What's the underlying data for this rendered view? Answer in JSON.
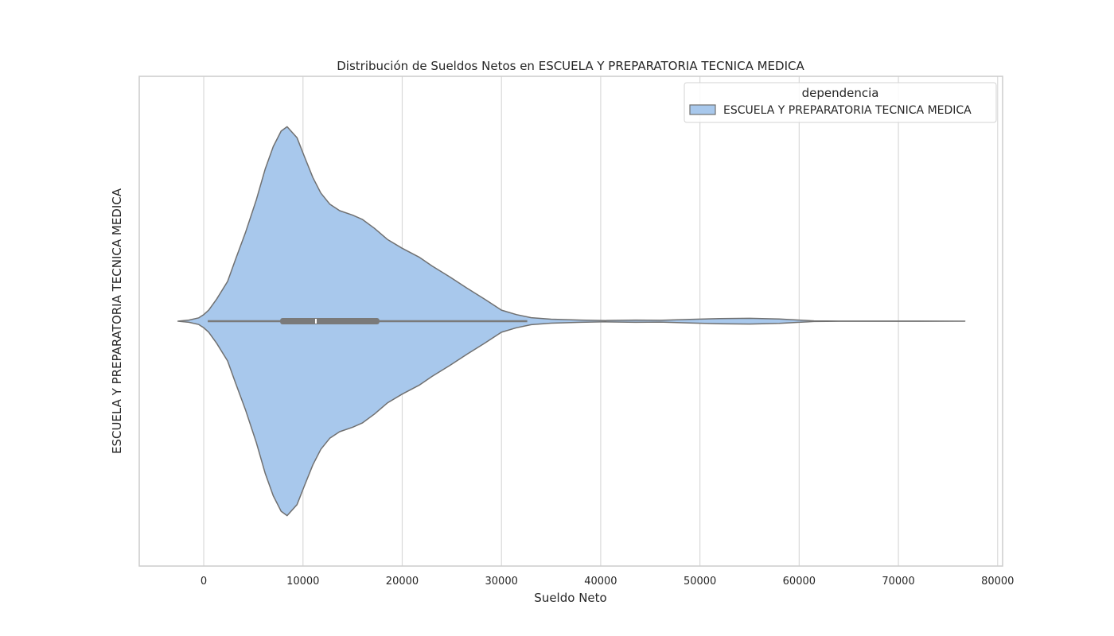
{
  "chart_data": {
    "type": "violin",
    "title": "Distribución de Sueldos Netos en ESCUELA Y PREPARATORIA TECNICA MEDICA",
    "xlabel": "Sueldo Neto",
    "ylabel": "ESCUELA Y PREPARATORIA TECNICA MEDICA",
    "xlim": [
      -6500,
      80500
    ],
    "x_ticks": [
      0,
      10000,
      20000,
      30000,
      40000,
      50000,
      60000,
      70000,
      80000
    ],
    "x_tick_labels": [
      "0",
      "10000",
      "20000",
      "30000",
      "40000",
      "50000",
      "60000",
      "70000",
      "80000"
    ],
    "grid": "vertical",
    "legend": {
      "title": "dependencia",
      "placement": "top-right",
      "entries": [
        "ESCUELA Y PREPARATORIA TECNICA MEDICA"
      ]
    },
    "series": [
      {
        "name": "ESCUELA Y PREPARATORIA TECNICA MEDICA",
        "color": "#a8c8ec",
        "edge_color": "#707070",
        "density_profile": [
          [
            -2600,
            0.0
          ],
          [
            -1500,
            0.005
          ],
          [
            -500,
            0.015
          ],
          [
            0,
            0.03
          ],
          [
            500,
            0.05
          ],
          [
            1300,
            0.1
          ],
          [
            2400,
            0.18
          ],
          [
            3200,
            0.28
          ],
          [
            4200,
            0.4
          ],
          [
            5300,
            0.55
          ],
          [
            6200,
            0.69
          ],
          [
            7000,
            0.79
          ],
          [
            7800,
            0.86
          ],
          [
            8400,
            0.88
          ],
          [
            9400,
            0.83
          ],
          [
            10100,
            0.75
          ],
          [
            11000,
            0.65
          ],
          [
            11800,
            0.58
          ],
          [
            12700,
            0.53
          ],
          [
            13700,
            0.5
          ],
          [
            15000,
            0.48
          ],
          [
            16000,
            0.46
          ],
          [
            17200,
            0.42
          ],
          [
            18500,
            0.37
          ],
          [
            20000,
            0.33
          ],
          [
            21700,
            0.29
          ],
          [
            23000,
            0.25
          ],
          [
            24800,
            0.2
          ],
          [
            26500,
            0.15
          ],
          [
            28300,
            0.1
          ],
          [
            30000,
            0.05
          ],
          [
            31500,
            0.03
          ],
          [
            33000,
            0.016
          ],
          [
            35000,
            0.009
          ],
          [
            38000,
            0.005
          ],
          [
            40500,
            0.003
          ],
          [
            43500,
            0.005
          ],
          [
            46000,
            0.004
          ],
          [
            49000,
            0.008
          ],
          [
            52000,
            0.012
          ],
          [
            55000,
            0.013
          ],
          [
            58000,
            0.01
          ],
          [
            60000,
            0.005
          ],
          [
            61500,
            0.0015
          ],
          [
            64000,
            0.0005
          ],
          [
            68000,
            0.0004
          ],
          [
            72000,
            0.0003
          ],
          [
            76700,
            0.0
          ]
        ],
        "box": {
          "whisker_low": 400,
          "q1": 7700,
          "median": 11300,
          "q3": 17700,
          "whisker_high": 32600
        }
      }
    ]
  }
}
